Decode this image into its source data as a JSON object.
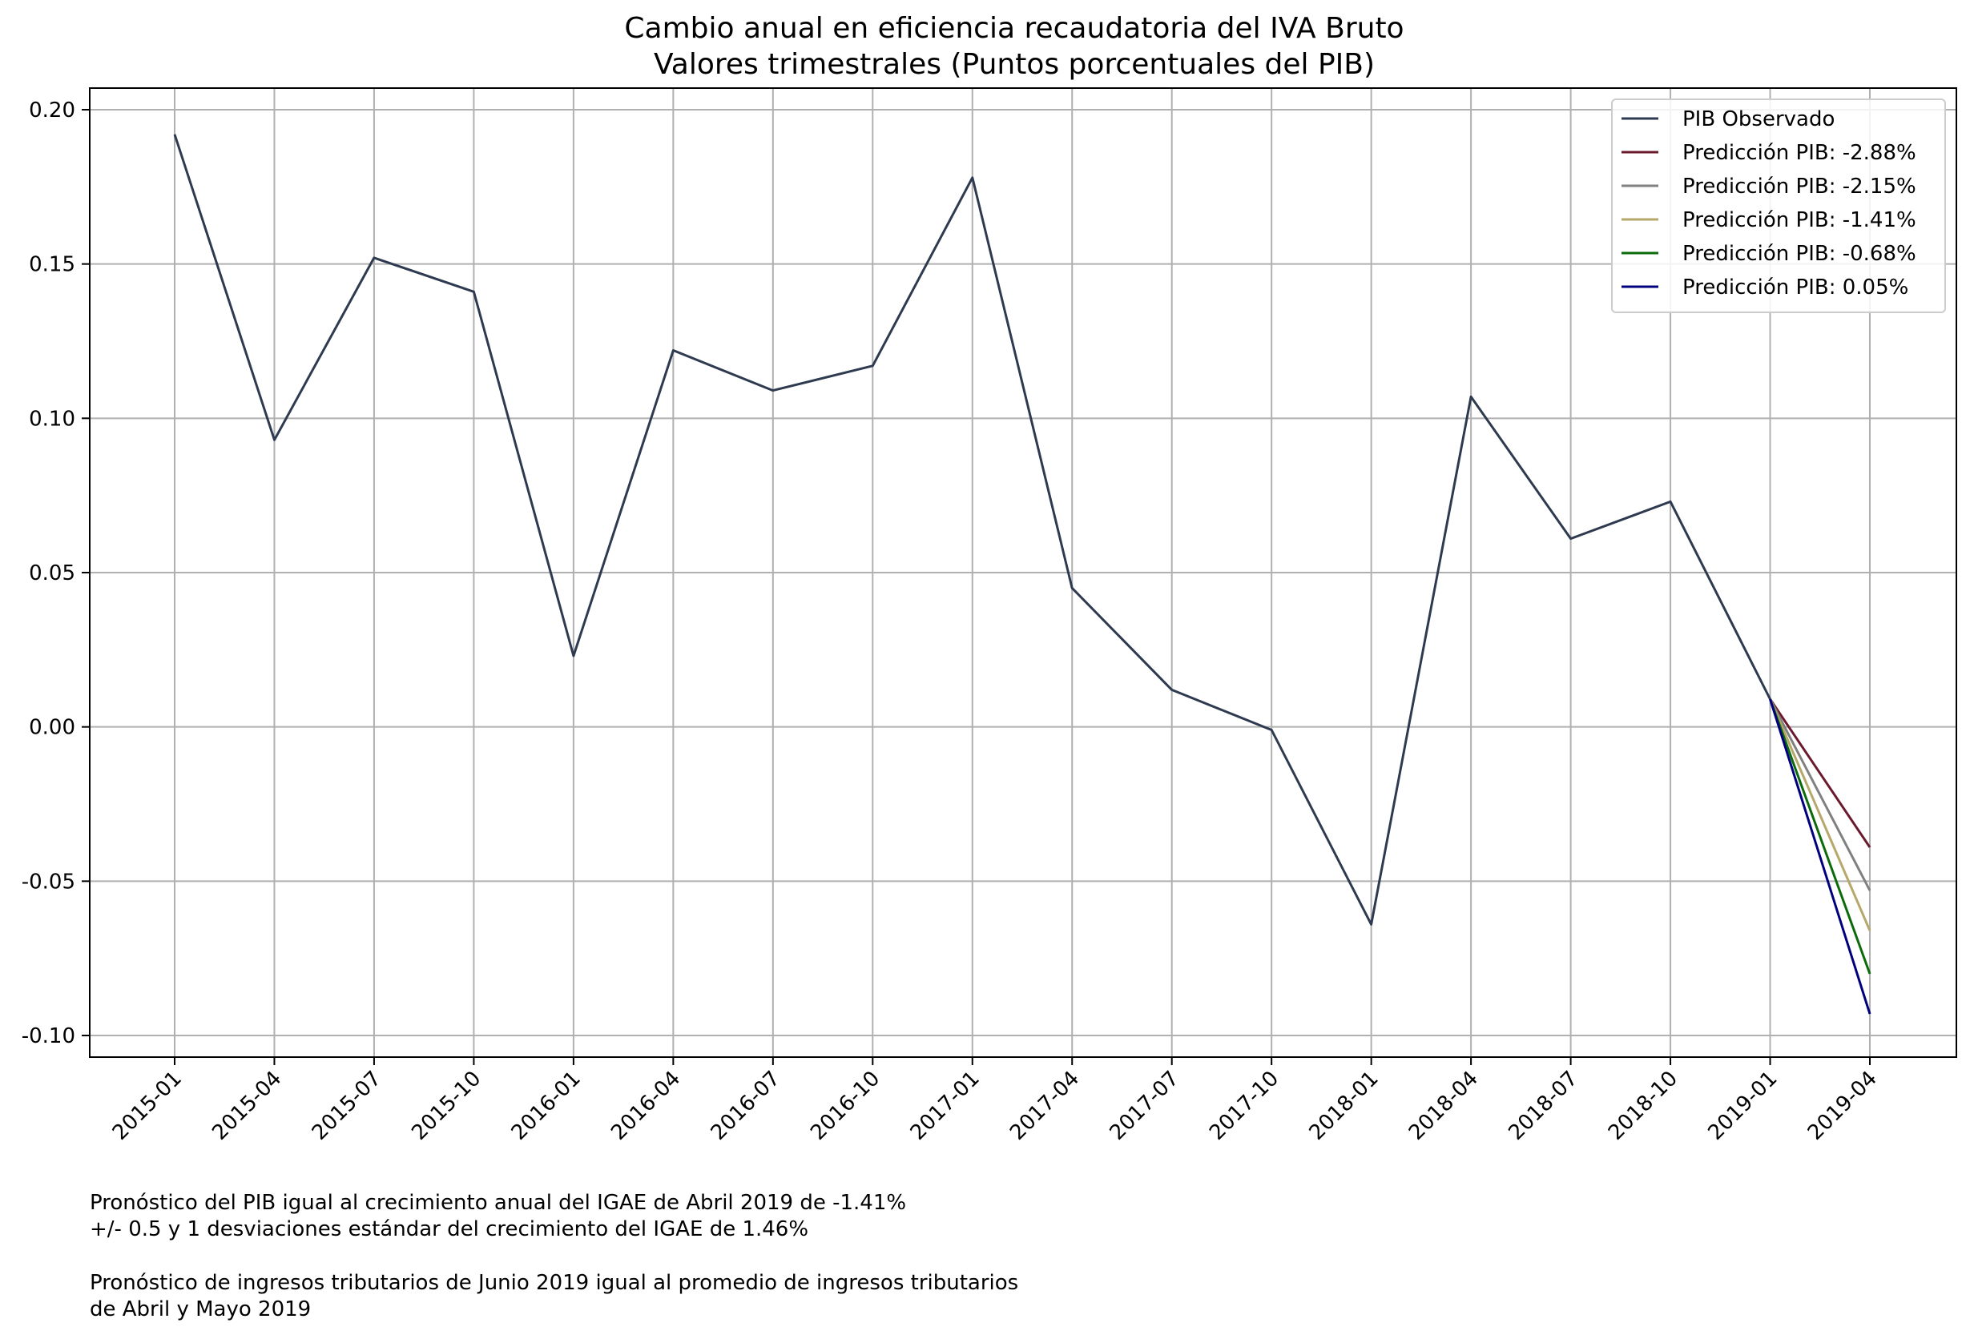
{
  "chart_data": {
    "type": "line",
    "title": "Cambio anual en eficiencia recaudatoria del IVA Bruto",
    "subtitle": "Valores trimestrales (Puntos porcentuales del PIB)",
    "xlabel": "",
    "ylabel": "",
    "x": [
      "2015-01",
      "2015-04",
      "2015-07",
      "2015-10",
      "2016-01",
      "2016-04",
      "2016-07",
      "2016-10",
      "2017-01",
      "2017-04",
      "2017-07",
      "2017-10",
      "2018-01",
      "2018-04",
      "2018-07",
      "2018-10",
      "2019-01",
      "2019-04"
    ],
    "ylim": [
      -0.107,
      0.207
    ],
    "yticks": [
      0.2,
      0.15,
      0.1,
      0.05,
      0.0,
      -0.05,
      -0.1
    ],
    "ytick_labels": [
      "0.20",
      "0.15",
      "0.10",
      "0.05",
      "0.00",
      "-0.05",
      "-0.10"
    ],
    "grid": true,
    "legend_position": "top-right",
    "series": [
      {
        "name": "PIB Observado",
        "color": "#2e3a4f",
        "x": [
          "2015-01",
          "2015-04",
          "2015-07",
          "2015-10",
          "2016-01",
          "2016-04",
          "2016-07",
          "2016-10",
          "2017-01",
          "2017-04",
          "2017-07",
          "2017-10",
          "2018-01",
          "2018-04",
          "2018-07",
          "2018-10",
          "2019-01"
        ],
        "values": [
          0.192,
          0.093,
          0.152,
          0.141,
          0.023,
          0.122,
          0.109,
          0.117,
          0.178,
          0.045,
          0.012,
          -0.001,
          -0.064,
          0.107,
          0.061,
          0.073,
          0.009
        ]
      },
      {
        "name": "Predicción PIB: -2.88%",
        "color": "#6b1a2e",
        "x": [
          "2019-01",
          "2019-04"
        ],
        "values": [
          0.009,
          -0.039
        ]
      },
      {
        "name": "Predicción PIB: -2.15%",
        "color": "#808080",
        "x": [
          "2019-01",
          "2019-04"
        ],
        "values": [
          0.009,
          -0.053
        ]
      },
      {
        "name": "Predicción PIB: -1.41%",
        "color": "#b5a86a",
        "x": [
          "2019-01",
          "2019-04"
        ],
        "values": [
          0.009,
          -0.066
        ]
      },
      {
        "name": "Predicción PIB: -0.68%",
        "color": "#0b6b0b",
        "x": [
          "2019-01",
          "2019-04"
        ],
        "values": [
          0.009,
          -0.08
        ]
      },
      {
        "name": "Predicción PIB: 0.05%",
        "color": "#00007f",
        "x": [
          "2019-01",
          "2019-04"
        ],
        "values": [
          0.009,
          -0.093
        ]
      }
    ]
  },
  "notes": [
    "Pronóstico del PIB igual al crecimiento anual del IGAE de Abril 2019 de -1.41%",
    "+/- 0.5 y 1 desviaciones estándar del crecimiento del IGAE de 1.46%",
    "Pronóstico de ingresos tributarios de Junio 2019 igual al promedio de ingresos tributarios",
    "de Abril y Mayo 2019"
  ]
}
